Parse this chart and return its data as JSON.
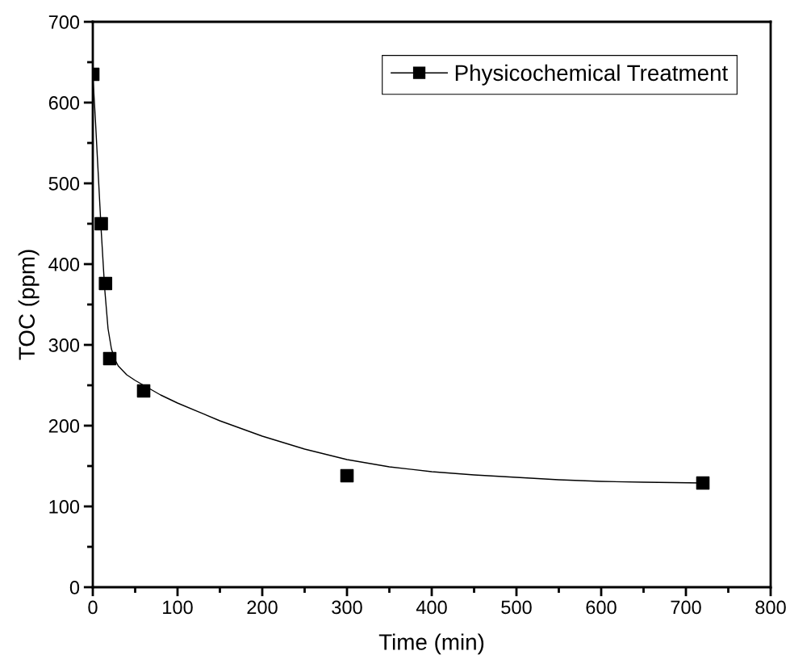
{
  "chart_data": {
    "type": "scatter",
    "xlabel": "Time (min)",
    "ylabel": "TOC (ppm)",
    "xlim": [
      0,
      800
    ],
    "xticks": [
      0,
      100,
      200,
      300,
      400,
      500,
      600,
      700,
      800
    ],
    "ylim": [
      0,
      700
    ],
    "yticks": [
      0,
      100,
      200,
      300,
      400,
      500,
      600,
      700
    ],
    "legend": "top right",
    "grid": false,
    "series": [
      {
        "name": "Physicochemical Treatment",
        "marker": "square",
        "color": "#000000",
        "x": [
          0,
          10,
          15,
          20,
          60,
          300,
          720
        ],
        "values": [
          635,
          450,
          376,
          283,
          243,
          138,
          129
        ]
      },
      {
        "type": "line",
        "marker": "none",
        "color": "#000000",
        "line_style": "solid",
        "x": [
          0,
          3,
          6,
          10,
          14,
          18,
          22,
          26,
          30,
          40,
          50,
          60,
          80,
          100,
          150,
          200,
          250,
          300,
          350,
          400,
          450,
          500,
          550,
          600,
          650,
          720
        ],
        "values": [
          635,
          580,
          520,
          440,
          370,
          320,
          295,
          282,
          274,
          263,
          256,
          250,
          238,
          228,
          206,
          187,
          171,
          158,
          149,
          143,
          139,
          136,
          133,
          131,
          130,
          129
        ]
      }
    ]
  }
}
